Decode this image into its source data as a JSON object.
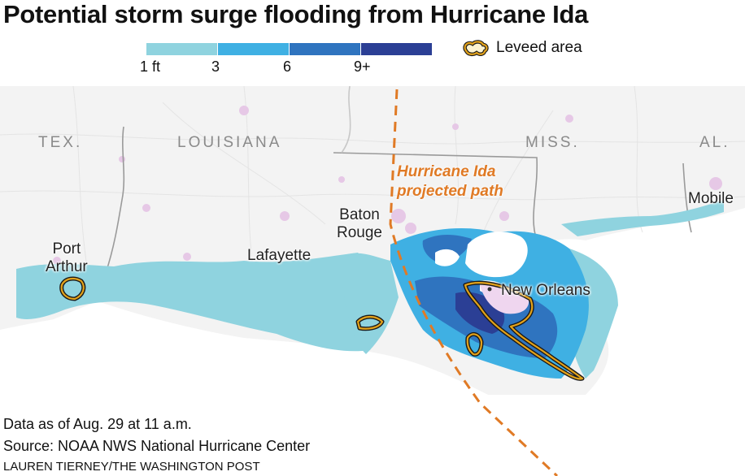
{
  "title": "Potential storm surge flooding from Hurricane Ida",
  "legend": {
    "ticks": [
      "1 ft",
      "3",
      "6",
      "9+"
    ],
    "colors": [
      "#8fd3df",
      "#3fb0e3",
      "#2f74bf",
      "#2b3f95"
    ],
    "levee_label": "Leveed area",
    "levee_color": "#e3a21a"
  },
  "states": [
    "TEX.",
    "LOUISIANA",
    "MISS.",
    "AL."
  ],
  "cities": {
    "port_arthur": "Port\nArthur",
    "lafayette": "Lafayette",
    "baton_rouge": "Baton\nRouge",
    "new_orleans": "New Orleans",
    "mobile": "Mobile"
  },
  "path_label": "Hurricane Ida\nprojected path",
  "path_color": "#e07a25",
  "footer": {
    "data_note": "Data as of Aug. 29 at 11 a.m.",
    "source": "Source: NOAA NWS National Hurricane Center",
    "credit": "LAUREN TIERNEY/THE WASHINGTON POST"
  }
}
